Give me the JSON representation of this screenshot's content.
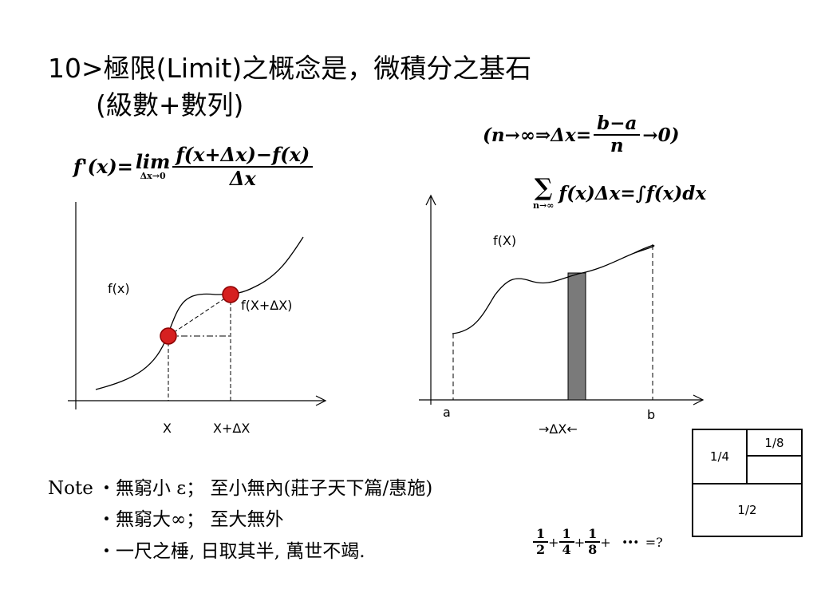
{
  "slide": {
    "title_line1": "10>極限(Limit)之概念是，微積分之基石",
    "title_line2": "(級數+數列)"
  },
  "formulas": {
    "derivative_lhs": "f'(x)=",
    "derivative_lim": "lim",
    "derivative_lim_sub": "Δx→0",
    "derivative_num": "f(x+Δx)−f(x)",
    "derivative_den": "Δx",
    "limit_open": "(n→∞⇒Δx=",
    "limit_num": "b−a",
    "limit_den": "n",
    "limit_close": "→0)",
    "sum_symbol": "∑",
    "sum_sub": "n→∞",
    "sum_expr": "f(x)Δx=∫f(x)dx"
  },
  "left_graph": {
    "curve_label": "f(x)",
    "point_label": "f(X+ΔX)",
    "x_tick1": "X",
    "x_tick2": "X+ΔX",
    "point_color": "#d62020"
  },
  "right_graph": {
    "curve_label": "f(X)",
    "tick_a": "a",
    "tick_b": "b",
    "delta_label": "→ΔX←",
    "bar_color": "#7a7a7a"
  },
  "note": {
    "prefix": "Note",
    "line1": "‧無窮小 ε； 至小無內(莊子天下篇/惠施)",
    "line2": "‧無窮大∞； 至大無外",
    "line3": "‧一尺之棰, 日取其半, 萬世不竭."
  },
  "series": {
    "t1_num": "1",
    "t1_den": "2",
    "t2_num": "1",
    "t2_den": "4",
    "t3_num": "1",
    "t3_den": "8",
    "plus": "+",
    "dots": "•••",
    "tail": "=?"
  },
  "square": {
    "quarter": "1/4",
    "eighth": "1/8",
    "half": "1/2"
  }
}
